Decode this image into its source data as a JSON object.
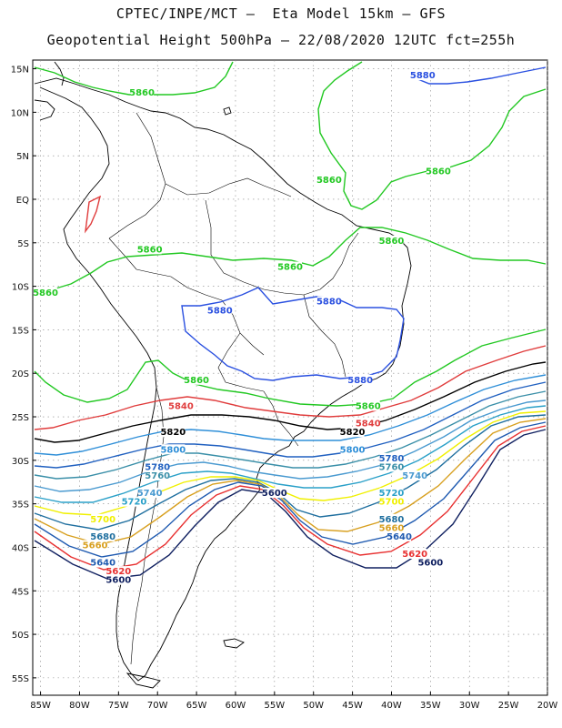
{
  "header": {
    "line1": "CPTEC/INPE/MCT –  Eta Model 15km – GFS",
    "line2": "Geopotential Height 500hPa – 22/08/2020 12UTC fct=255h"
  },
  "axes": {
    "lat_ticks": [
      "15N",
      "10N",
      "5N",
      "EQ",
      "5S",
      "10S",
      "15S",
      "20S",
      "25S",
      "30S",
      "35S",
      "40S",
      "45S",
      "50S",
      "55S"
    ],
    "lon_ticks": [
      "85W",
      "80W",
      "75W",
      "70W",
      "65W",
      "60W",
      "55W",
      "50W",
      "45W",
      "40W",
      "35W",
      "30W",
      "25W",
      "20W"
    ],
    "lat_range": [
      "16N",
      "57S"
    ],
    "lon_range": [
      "86W",
      "20W"
    ],
    "grid": "dotted, every 5 degrees"
  },
  "contour_colors": {
    "5880": "#2a50e0",
    "5860": "#22c822",
    "5840": "#e03c3c",
    "5820": "#000000",
    "5800": "#2f8fd8",
    "5780": "#2060c0",
    "5760": "#3a8fa8",
    "5740": "#4a9ad0",
    "5720": "#2aa0c8",
    "5700": "#f0f000",
    "5680": "#1f6f9f",
    "5660": "#d8a020",
    "5640": "#1f5ab0",
    "5620": "#e83030",
    "5600": "#102060"
  },
  "contour_labels": [
    {
      "text": "5880",
      "lon": "36W",
      "lat": "14N",
      "level": "5880"
    },
    {
      "text": "5860",
      "lon": "72W",
      "lat": "12N",
      "level": "5860"
    },
    {
      "text": "5860",
      "lon": "48W",
      "lat": "2N",
      "level": "5860"
    },
    {
      "text": "5860",
      "lon": "34W",
      "lat": "3N",
      "level": "5860"
    },
    {
      "text": "5860",
      "lon": "40W",
      "lat": "5S",
      "level": "5860"
    },
    {
      "text": "5860",
      "lon": "71W",
      "lat": "6S",
      "level": "5860"
    },
    {
      "text": "5860",
      "lon": "53W",
      "lat": "8S",
      "level": "5860"
    },
    {
      "text": "5860",
      "lon": "86W",
      "lat": "11S",
      "level": "5860"
    },
    {
      "text": "5880",
      "lon": "48W",
      "lat": "12S",
      "level": "5880"
    },
    {
      "text": "5880",
      "lon": "62W",
      "lat": "13S",
      "level": "5880"
    },
    {
      "text": "5880",
      "lon": "44W",
      "lat": "21S",
      "level": "5880"
    },
    {
      "text": "5860",
      "lon": "65W",
      "lat": "21S",
      "level": "5860"
    },
    {
      "text": "5860",
      "lon": "43W",
      "lat": "24S",
      "level": "5860"
    },
    {
      "text": "5840",
      "lon": "67W",
      "lat": "24S",
      "level": "5840"
    },
    {
      "text": "5840",
      "lon": "43W",
      "lat": "26S",
      "level": "5840"
    },
    {
      "text": "5820",
      "lon": "68W",
      "lat": "27S",
      "level": "5820"
    },
    {
      "text": "5820",
      "lon": "45W",
      "lat": "27S",
      "level": "5820"
    },
    {
      "text": "5800",
      "lon": "45W",
      "lat": "29S",
      "level": "5800"
    },
    {
      "text": "5800",
      "lon": "68W",
      "lat": "29S",
      "level": "5800"
    },
    {
      "text": "5780",
      "lon": "70W",
      "lat": "31S",
      "level": "5780"
    },
    {
      "text": "5780",
      "lon": "40W",
      "lat": "30S",
      "level": "5780"
    },
    {
      "text": "5760",
      "lon": "70W",
      "lat": "32S",
      "level": "5760"
    },
    {
      "text": "5760",
      "lon": "40W",
      "lat": "31S",
      "level": "5760"
    },
    {
      "text": "5740",
      "lon": "71W",
      "lat": "34S",
      "level": "5740"
    },
    {
      "text": "5740",
      "lon": "37W",
      "lat": "32S",
      "level": "5740"
    },
    {
      "text": "5720",
      "lon": "73W",
      "lat": "35S",
      "level": "5720"
    },
    {
      "text": "5720",
      "lon": "40W",
      "lat": "34S",
      "level": "5720"
    },
    {
      "text": "5700",
      "lon": "77W",
      "lat": "37S",
      "level": "5700"
    },
    {
      "text": "5700",
      "lon": "40W",
      "lat": "35S",
      "level": "5700"
    },
    {
      "text": "5680",
      "lon": "77W",
      "lat": "39S",
      "level": "5680"
    },
    {
      "text": "5680",
      "lon": "40W",
      "lat": "37S",
      "level": "5680"
    },
    {
      "text": "5660",
      "lon": "78W",
      "lat": "40S",
      "level": "5660"
    },
    {
      "text": "5660",
      "lon": "40W",
      "lat": "38S",
      "level": "5660"
    },
    {
      "text": "5640",
      "lon": "77W",
      "lat": "42S",
      "level": "5640"
    },
    {
      "text": "5640",
      "lon": "39W",
      "lat": "39S",
      "level": "5640"
    },
    {
      "text": "5620",
      "lon": "75W",
      "lat": "43S",
      "level": "5620"
    },
    {
      "text": "5620",
      "lon": "37W",
      "lat": "41S",
      "level": "5620"
    },
    {
      "text": "5600",
      "lon": "75W",
      "lat": "44S",
      "level": "5600"
    },
    {
      "text": "5600",
      "lon": "35W",
      "lat": "42S",
      "level": "5600"
    },
    {
      "text": "5600",
      "lon": "55W",
      "lat": "34S",
      "level": "5600"
    }
  ]
}
